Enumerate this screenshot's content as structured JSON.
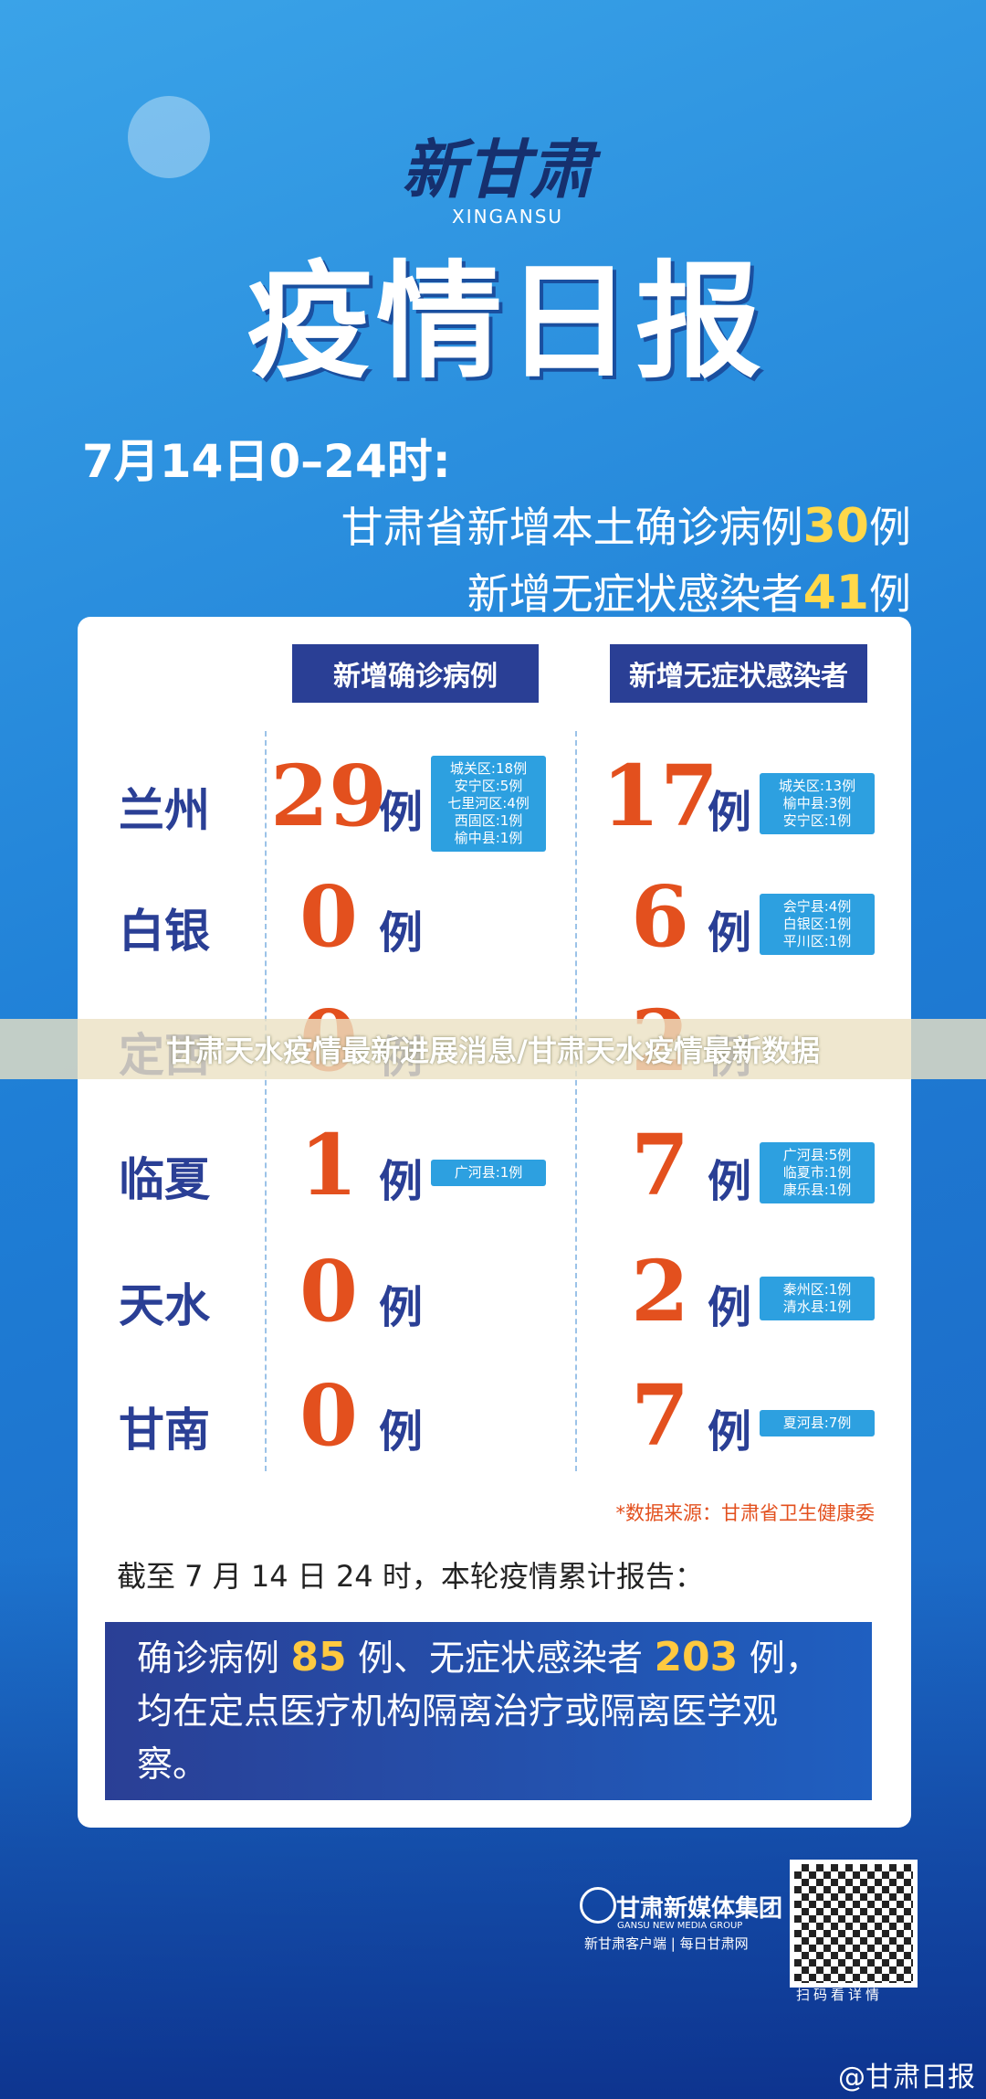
{
  "header": {
    "brand": "新甘肃",
    "brand_en": "XINGANSU",
    "title": "疫情日报",
    "date": "7月14日0–24时:",
    "summary": [
      {
        "text": "甘肃省新增本土确诊病例",
        "number": "30",
        "unit": "例"
      },
      {
        "text": "新增无症状感染者",
        "number": "41",
        "unit": "例"
      }
    ]
  },
  "table": {
    "headers": [
      "新增确诊病例",
      "新增无症状感染者"
    ],
    "rows": [
      {
        "city": "兰州",
        "confirmed": "29",
        "confirmed_unit": "例",
        "confirmed_details": [
          "城关区:18例",
          "安宁区:5例",
          "七里河区:4例",
          "西固区:1例",
          "榆中县:1例"
        ],
        "asymptomatic": "17",
        "asymptomatic_unit": "例",
        "asymptomatic_details": [
          "城关区:13例",
          "榆中县:3例",
          "安宁区:1例"
        ]
      },
      {
        "city": "白银",
        "confirmed": "0",
        "confirmed_unit": "例",
        "confirmed_details": [],
        "asymptomatic": "6",
        "asymptomatic_unit": "例",
        "asymptomatic_details": [
          "会宁县:4例",
          "白银区:1例",
          "平川区:1例"
        ]
      },
      {
        "city": "定西",
        "confirmed": "0",
        "confirmed_unit": "例",
        "confirmed_details": [],
        "asymptomatic": "2",
        "asymptomatic_unit": "例",
        "asymptomatic_details": []
      },
      {
        "city": "临夏",
        "confirmed": "1",
        "confirmed_unit": "例",
        "confirmed_details": [
          "广河县:1例"
        ],
        "asymptomatic": "7",
        "asymptomatic_unit": "例",
        "asymptomatic_details": [
          "广河县:5例",
          "临夏市:1例",
          "康乐县:1例"
        ]
      },
      {
        "city": "天水",
        "confirmed": "0",
        "confirmed_unit": "例",
        "confirmed_details": [],
        "asymptomatic": "2",
        "asymptomatic_unit": "例",
        "asymptomatic_details": [
          "秦州区:1例",
          "清水县:1例"
        ]
      },
      {
        "city": "甘南",
        "confirmed": "0",
        "confirmed_unit": "例",
        "confirmed_details": [],
        "asymptomatic": "7",
        "asymptomatic_unit": "例",
        "asymptomatic_details": [
          "夏河县:7例"
        ]
      }
    ],
    "source": "*数据来源：甘肃省卫生健康委"
  },
  "cumulative": {
    "title": "截至 7 月 14 日 24 时，本轮疫情累计报告：",
    "parts": [
      "确诊病例 ",
      "85",
      " 例、无症状感染者 ",
      "203",
      " 例，均在定点医疗机构隔离治疗或隔离医学观察。"
    ]
  },
  "overlay": "甘肃天水疫情最新进展消息/甘肃天水疫情最新数据",
  "footer": {
    "group": "甘肃新媒体集团",
    "group_en": "GANSU NEW MEDIA GROUP",
    "channels": "新甘肃客户端 | 每日甘肃网",
    "qr_caption": "扫码看详情",
    "account": "@甘肃日报"
  }
}
